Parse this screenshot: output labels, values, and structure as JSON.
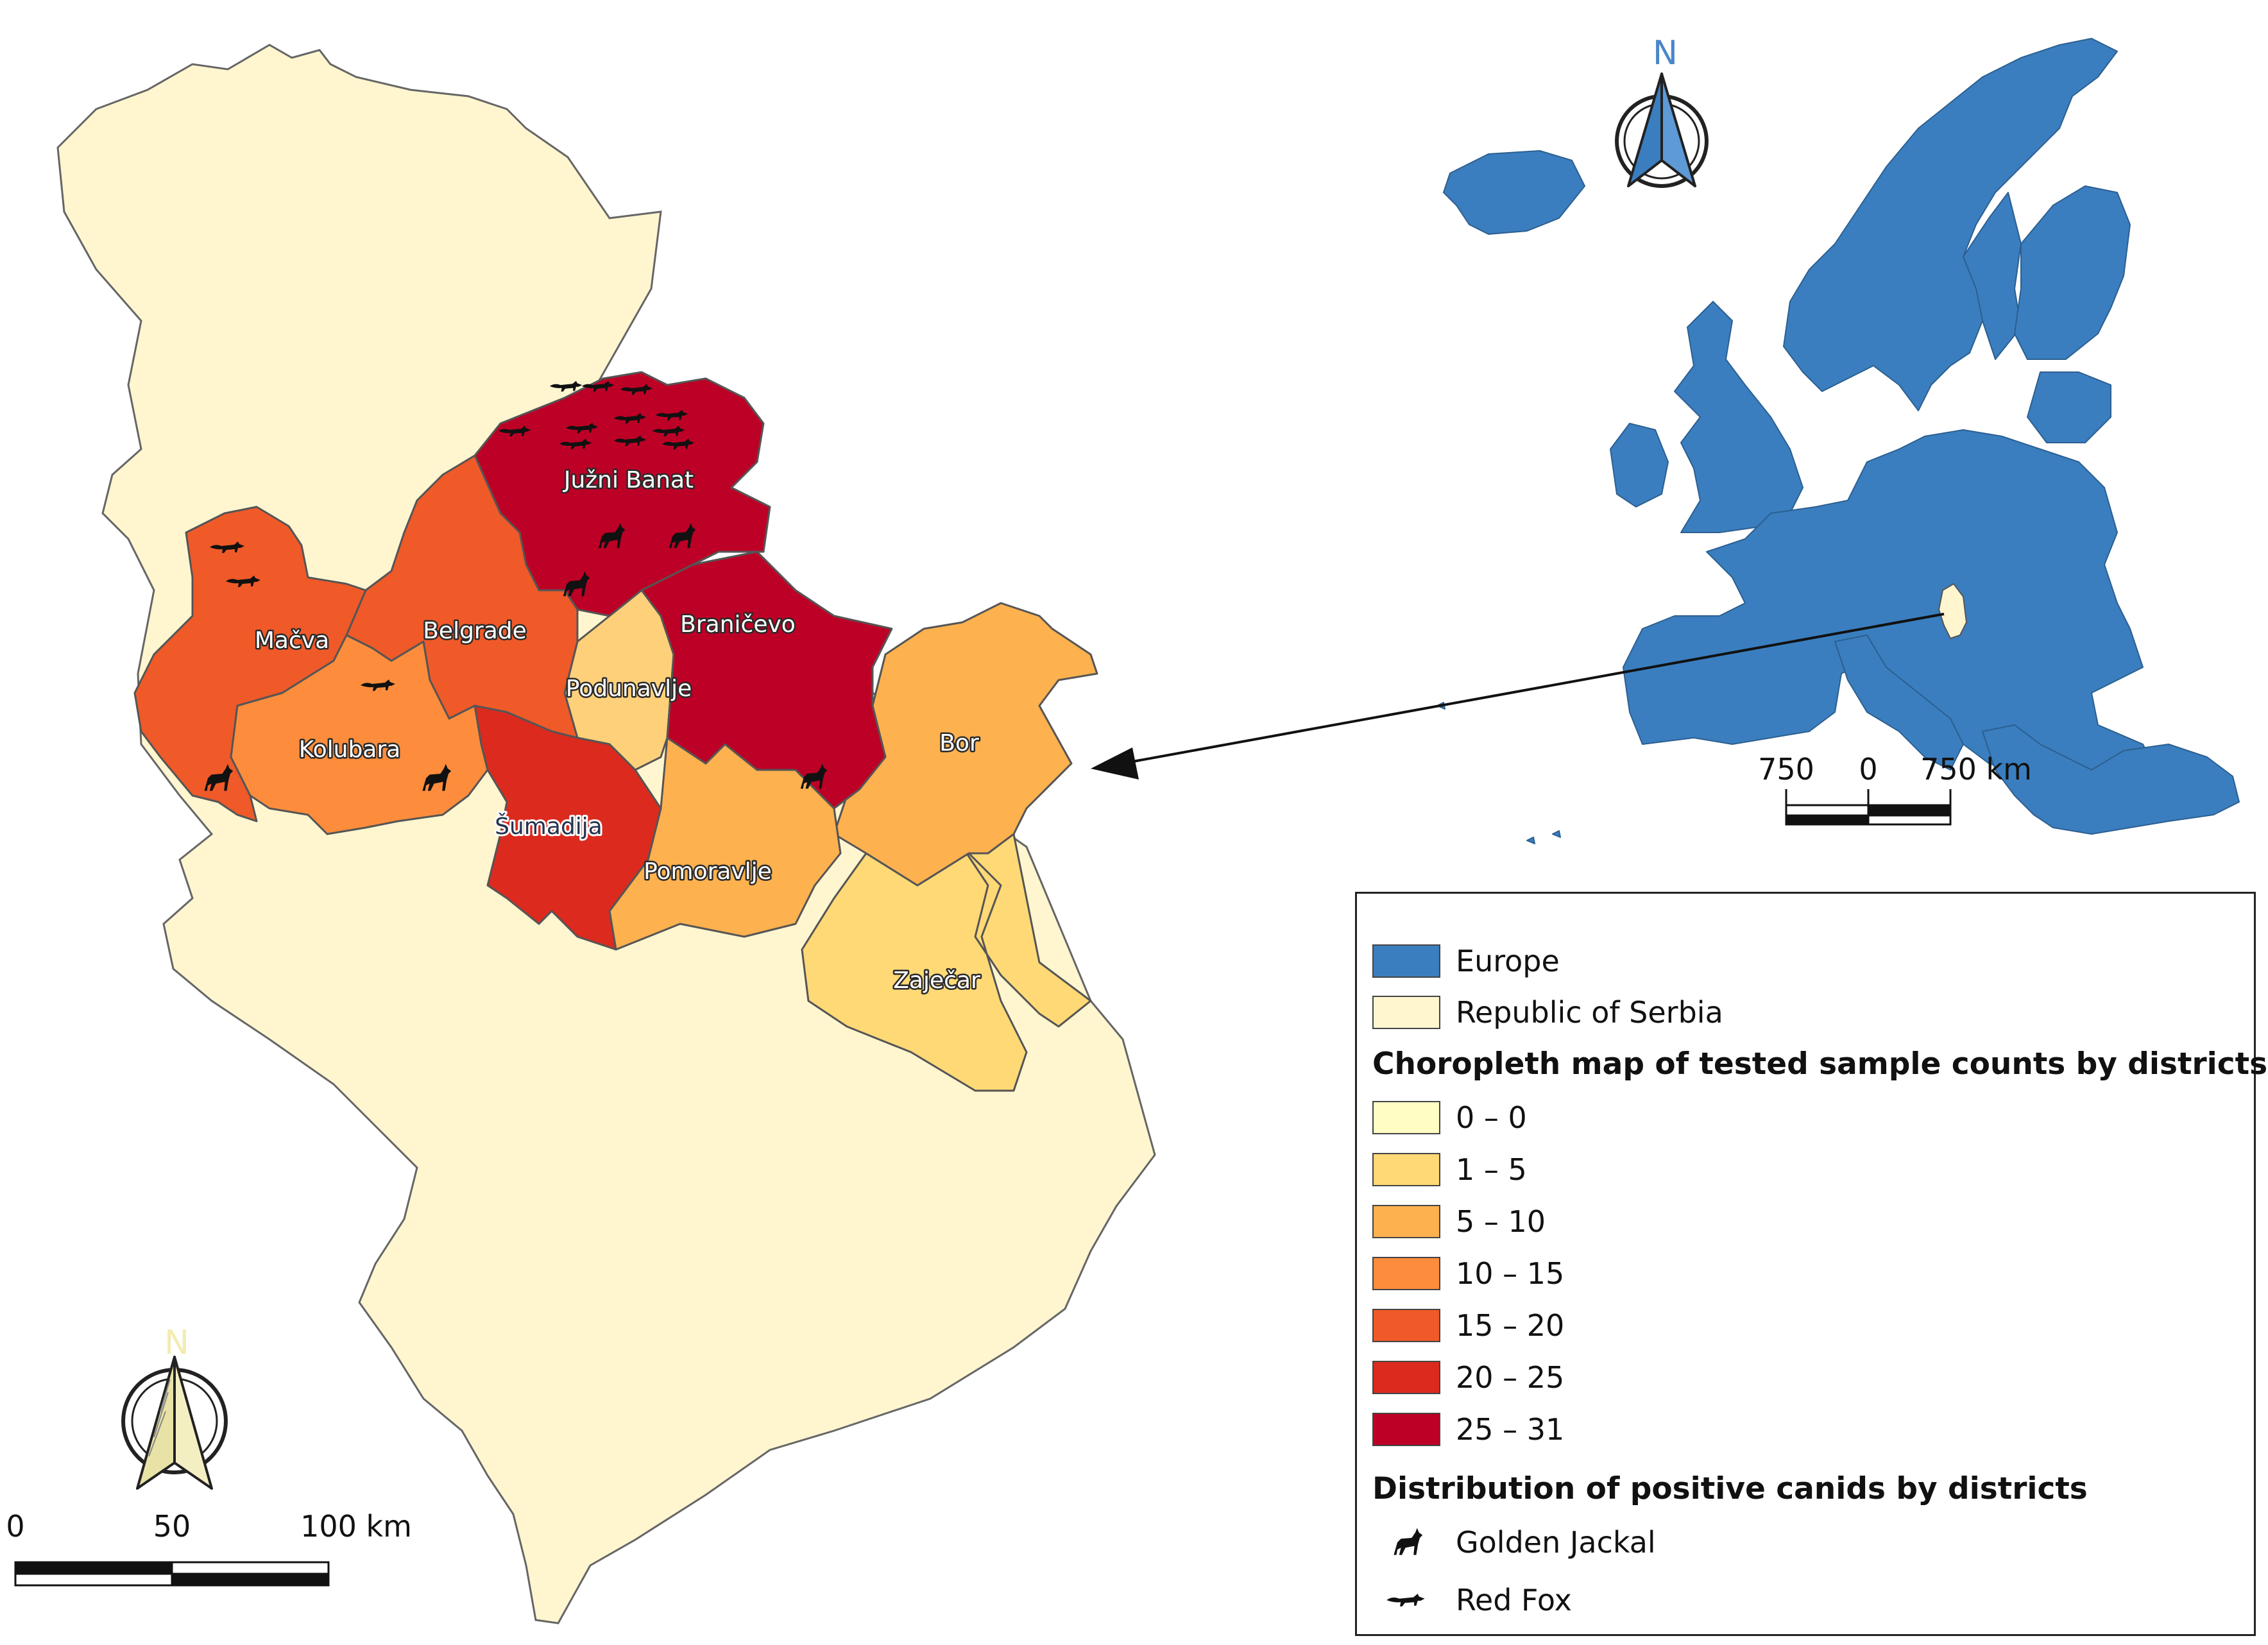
{
  "europe_scale": {
    "left": "750",
    "mid": "0",
    "right": "750 km"
  },
  "serbia_scale": {
    "left": "0",
    "mid": "50",
    "right": "100 km"
  },
  "north_arrow": {
    "letter": "N"
  },
  "districts": {
    "juzni_banat": "Južni Banat",
    "macva": "Mačva",
    "belgrade": "Belgrade",
    "branicevo": "Braničevo",
    "podunavlje": "Podunavlje",
    "kolubara": "Kolubara",
    "sumadija": "Šumadija",
    "bor": "Bor",
    "pomoravlje": "Pomoravlje",
    "zajecar": "Zaječar"
  },
  "legend": {
    "europe": "Europe",
    "serbia": "Republic of Serbia",
    "choropleth_title": "Choropleth map of tested sample counts by districts",
    "classes": [
      {
        "label": "0 – 0",
        "color": "#fffcc4"
      },
      {
        "label": "1 – 5",
        "color": "#fed976"
      },
      {
        "label": "5 – 10",
        "color": "#fdb14f"
      },
      {
        "label": "10 – 15",
        "color": "#fd8d3c"
      },
      {
        "label": "15 – 20",
        "color": "#f05a28"
      },
      {
        "label": "20 – 25",
        "color": "#dc2a1e"
      },
      {
        "label": "25 – 31",
        "color": "#bd0026"
      }
    ],
    "canids_title": "Distribution of positive canids by districts",
    "golden_jackal": "Golden Jackal",
    "red_fox": "Red Fox"
  },
  "colors": {
    "europe": "#3a7ebf",
    "serbia": "#fff6d0",
    "outline": "#555555"
  }
}
